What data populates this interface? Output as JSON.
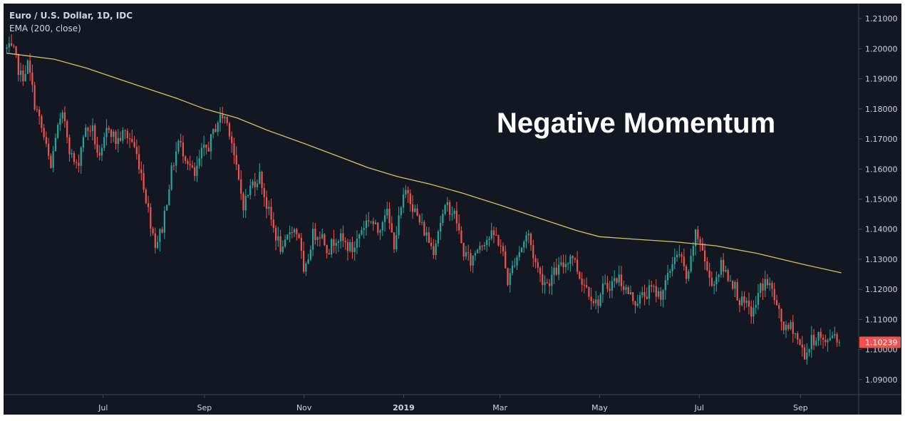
{
  "chart_data": {
    "type": "candlestick",
    "symbol_title": "Euro / U.S. Dollar, 1D, IDC",
    "indicator_title": "EMA (200, close)",
    "annotation": "Negative Momentum",
    "last_price_label": "1.10239",
    "colors": {
      "background": "#131722",
      "up": "#26a69a",
      "down": "#ef5350",
      "ema": "#d4c16a",
      "axis": "#434651",
      "text": "#d1d4dc"
    },
    "y_axis": {
      "min": 1.085,
      "max": 1.215,
      "ticks": [
        "1.21000",
        "1.20000",
        "1.19000",
        "1.18000",
        "1.17000",
        "1.16000",
        "1.15000",
        "1.14000",
        "1.13000",
        "1.12000",
        "1.11000",
        "1.10000",
        "1.09000"
      ]
    },
    "x_axis": {
      "ticks": [
        {
          "label": "Jul",
          "day": 10
        },
        {
          "label": "Sep",
          "day": 72
        },
        {
          "label": "Nov",
          "day": 133
        },
        {
          "label": "2019",
          "day": 194,
          "bold": true
        },
        {
          "label": "Mar",
          "day": 253
        },
        {
          "label": "May",
          "day": 314
        },
        {
          "label": "Jul",
          "day": 375
        },
        {
          "label": "Sep",
          "day": 437
        }
      ],
      "day_range": [
        -51,
        470
      ]
    },
    "ema": {
      "name": "EMA (200, close)",
      "points": [
        [
          -49,
          1.1985
        ],
        [
          -20,
          1.1965
        ],
        [
          0,
          1.1935
        ],
        [
          30,
          1.188
        ],
        [
          55,
          1.1835
        ],
        [
          72,
          1.18
        ],
        [
          92,
          1.177
        ],
        [
          110,
          1.173
        ],
        [
          133,
          1.1685
        ],
        [
          155,
          1.164
        ],
        [
          172,
          1.1605
        ],
        [
          190,
          1.1575
        ],
        [
          210,
          1.155
        ],
        [
          230,
          1.152
        ],
        [
          253,
          1.148
        ],
        [
          275,
          1.144
        ],
        [
          300,
          1.1395
        ],
        [
          314,
          1.1375
        ],
        [
          340,
          1.1365
        ],
        [
          360,
          1.1358
        ],
        [
          385,
          1.1345
        ],
        [
          410,
          1.132
        ],
        [
          437,
          1.1285
        ],
        [
          462,
          1.1255
        ]
      ]
    },
    "close_path": [
      [
        -49,
        1.2
      ],
      [
        -45,
        1.199
      ],
      [
        -40,
        1.19
      ],
      [
        -36,
        1.195
      ],
      [
        -32,
        1.182
      ],
      [
        -27,
        1.172
      ],
      [
        -22,
        1.16
      ],
      [
        -19,
        1.172
      ],
      [
        -14,
        1.178
      ],
      [
        -10,
        1.165
      ],
      [
        -6,
        1.16
      ],
      [
        -2,
        1.172
      ],
      [
        3,
        1.174
      ],
      [
        8,
        1.162
      ],
      [
        13,
        1.175
      ],
      [
        18,
        1.169
      ],
      [
        23,
        1.172
      ],
      [
        28,
        1.169
      ],
      [
        33,
        1.16
      ],
      [
        38,
        1.145
      ],
      [
        42,
        1.135
      ],
      [
        46,
        1.14
      ],
      [
        51,
        1.157
      ],
      [
        56,
        1.169
      ],
      [
        61,
        1.164
      ],
      [
        66,
        1.157
      ],
      [
        70,
        1.165
      ],
      [
        75,
        1.168
      ],
      [
        80,
        1.176
      ],
      [
        84,
        1.178
      ],
      [
        88,
        1.172
      ],
      [
        92,
        1.158
      ],
      [
        96,
        1.148
      ],
      [
        101,
        1.155
      ],
      [
        106,
        1.158
      ],
      [
        110,
        1.148
      ],
      [
        115,
        1.139
      ],
      [
        120,
        1.132
      ],
      [
        125,
        1.141
      ],
      [
        130,
        1.138
      ],
      [
        133,
        1.123
      ],
      [
        138,
        1.138
      ],
      [
        143,
        1.139
      ],
      [
        148,
        1.133
      ],
      [
        153,
        1.138
      ],
      [
        158,
        1.135
      ],
      [
        163,
        1.133
      ],
      [
        168,
        1.14
      ],
      [
        173,
        1.144
      ],
      [
        178,
        1.139
      ],
      [
        183,
        1.147
      ],
      [
        188,
        1.135
      ],
      [
        193,
        1.148
      ],
      [
        196,
        1.154
      ],
      [
        200,
        1.147
      ],
      [
        204,
        1.142
      ],
      [
        208,
        1.138
      ],
      [
        212,
        1.133
      ],
      [
        216,
        1.142
      ],
      [
        221,
        1.148
      ],
      [
        226,
        1.144
      ],
      [
        230,
        1.133
      ],
      [
        235,
        1.129
      ],
      [
        240,
        1.135
      ],
      [
        245,
        1.137
      ],
      [
        250,
        1.138
      ],
      [
        254,
        1.134
      ],
      [
        258,
        1.122
      ],
      [
        262,
        1.13
      ],
      [
        266,
        1.134
      ],
      [
        270,
        1.139
      ],
      [
        274,
        1.13
      ],
      [
        278,
        1.124
      ],
      [
        282,
        1.122
      ],
      [
        287,
        1.126
      ],
      [
        292,
        1.128
      ],
      [
        297,
        1.132
      ],
      [
        302,
        1.124
      ],
      [
        307,
        1.12
      ],
      [
        312,
        1.115
      ],
      [
        316,
        1.12
      ],
      [
        321,
        1.122
      ],
      [
        326,
        1.124
      ],
      [
        331,
        1.119
      ],
      [
        336,
        1.116
      ],
      [
        341,
        1.118
      ],
      [
        346,
        1.12
      ],
      [
        351,
        1.118
      ],
      [
        356,
        1.124
      ],
      [
        360,
        1.132
      ],
      [
        364,
        1.13
      ],
      [
        368,
        1.122
      ],
      [
        372,
        1.138
      ],
      [
        376,
        1.136
      ],
      [
        380,
        1.125
      ],
      [
        384,
        1.122
      ],
      [
        388,
        1.128
      ],
      [
        392,
        1.125
      ],
      [
        396,
        1.122
      ],
      [
        400,
        1.116
      ],
      [
        404,
        1.114
      ],
      [
        408,
        1.112
      ],
      [
        412,
        1.12
      ],
      [
        416,
        1.123
      ],
      [
        420,
        1.119
      ],
      [
        424,
        1.111
      ],
      [
        428,
        1.106
      ],
      [
        432,
        1.108
      ],
      [
        436,
        1.102
      ],
      [
        440,
        1.098
      ],
      [
        444,
        1.103
      ],
      [
        448,
        1.105
      ],
      [
        452,
        1.101
      ],
      [
        456,
        1.106
      ],
      [
        460,
        1.104
      ],
      [
        462,
        1.1024
      ]
    ]
  }
}
